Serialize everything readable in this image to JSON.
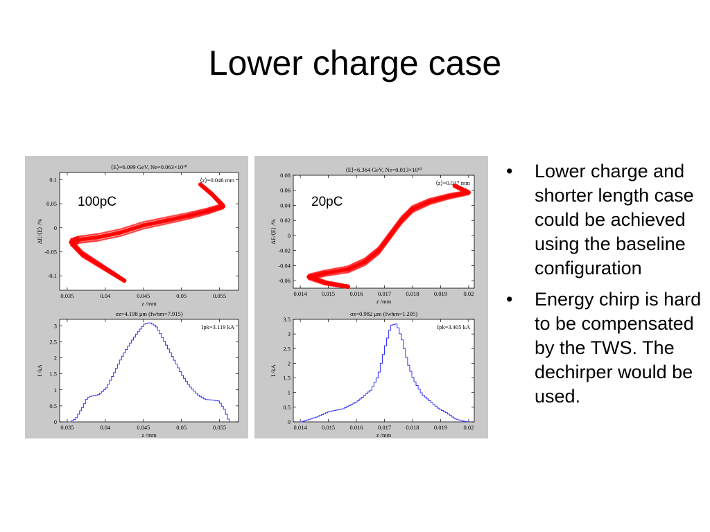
{
  "slide": {
    "title": "Lower charge case",
    "bullets": [
      "Lower charge and shorter length case could be achieved using the baseline configuration",
      "Energy chirp is hard to be compensated by the TWS. The dechirper would be used."
    ],
    "bullet_glyph": "•"
  },
  "panels": [
    {
      "label": "100pC",
      "top_header": "⟨E⟩=6.099 GeV, Ne=0.063×10¹⁰",
      "top_note": "⟨z⟩=0.046 mm",
      "bottom_header": "σz=4.198 μm (fwhm=7.915)",
      "bottom_note": "Ipk=3.119 kA"
    },
    {
      "label": "20pC",
      "top_header": "⟨E⟩=6.364 GeV, Ne=0.013×10¹⁰",
      "top_note": "⟨z⟩=0.017 mm",
      "bottom_header": "σz=0.982 μm (fwhm=1.205)",
      "bottom_note": "Ipk=3.405 kA"
    }
  ],
  "chart_data": [
    {
      "type": "scatter",
      "panel": "100pC",
      "xlabel": "z /mm",
      "ylabel": "ΔE/⟨E⟩ /%",
      "xlim": [
        0.034,
        0.0575
      ],
      "ylim": [
        -0.13,
        0.115
      ],
      "xticks": [
        0.035,
        0.04,
        0.045,
        0.05,
        0.055
      ],
      "xtick_labels": [
        "0.035",
        "0.04",
        "0.045",
        "0.05",
        "0.055"
      ],
      "yticks": [
        -0.1,
        -0.05,
        0,
        0.05,
        0.1
      ],
      "ytick_labels": [
        "-0.1",
        "-0.05",
        "0",
        "0.05",
        "0.1"
      ],
      "color": "#ff0000",
      "band_width": 0.014,
      "x": [
        0.0425,
        0.041,
        0.039,
        0.037,
        0.0355,
        0.0365,
        0.039,
        0.042,
        0.045,
        0.048,
        0.051,
        0.0535,
        0.0555,
        0.054,
        0.0525
      ],
      "y": [
        -0.11,
        -0.095,
        -0.075,
        -0.055,
        -0.03,
        -0.025,
        -0.02,
        -0.01,
        0.005,
        0.015,
        0.025,
        0.035,
        0.045,
        0.07,
        0.09
      ]
    },
    {
      "type": "scatter",
      "panel": "20pC",
      "xlabel": "z /mm",
      "ylabel": "ΔE/⟨E⟩ /%",
      "xlim": [
        0.01375,
        0.0202
      ],
      "ylim": [
        -0.07,
        0.08
      ],
      "xticks": [
        0.014,
        0.015,
        0.016,
        0.017,
        0.018,
        0.019,
        0.02
      ],
      "xtick_labels": [
        "0.014",
        "0.015",
        "0.016",
        "0.017",
        "0.018",
        "0.019",
        "0.02"
      ],
      "yticks": [
        -0.06,
        -0.04,
        -0.02,
        0,
        0.02,
        0.04,
        0.06,
        0.08
      ],
      "ytick_labels": [
        "-0.06",
        "-0.04",
        "-0.02",
        "0",
        "0.02",
        "0.04",
        "0.06",
        "0.08"
      ],
      "color": "#ff0000",
      "band_width": 0.009,
      "x": [
        0.0157,
        0.0149,
        0.0143,
        0.0149,
        0.0157,
        0.0163,
        0.0168,
        0.0172,
        0.0176,
        0.018,
        0.0186,
        0.0193,
        0.02,
        0.0195
      ],
      "y": [
        -0.068,
        -0.063,
        -0.055,
        -0.05,
        -0.045,
        -0.035,
        -0.02,
        0,
        0.02,
        0.035,
        0.045,
        0.052,
        0.057,
        0.066
      ]
    },
    {
      "type": "line",
      "panel": "100pC",
      "step": true,
      "xlabel": "z /mm",
      "ylabel": "I /kA",
      "xlim": [
        0.034,
        0.0575
      ],
      "ylim": [
        0,
        3.2
      ],
      "xticks": [
        0.035,
        0.04,
        0.045,
        0.05,
        0.055
      ],
      "xtick_labels": [
        "0.035",
        "0.04",
        "0.045",
        "0.05",
        "0.055"
      ],
      "yticks": [
        0,
        0.5,
        1,
        1.5,
        2,
        2.5,
        3
      ],
      "ytick_labels": [
        "0",
        "0.5",
        "1",
        "1.5",
        "2",
        "2.5",
        "3"
      ],
      "color": "#3333ff",
      "x": [
        0.0353,
        0.036,
        0.037,
        0.0375,
        0.038,
        0.039,
        0.04,
        0.041,
        0.042,
        0.043,
        0.044,
        0.045,
        0.0457,
        0.0465,
        0.047,
        0.048,
        0.049,
        0.05,
        0.051,
        0.052,
        0.053,
        0.054,
        0.0548,
        0.0555,
        0.056,
        0.0563
      ],
      "y": [
        0.0,
        0.1,
        0.5,
        0.75,
        0.8,
        0.85,
        1.05,
        1.5,
        2.0,
        2.4,
        2.75,
        3.05,
        3.1,
        3.0,
        2.8,
        2.35,
        1.9,
        1.45,
        1.1,
        0.85,
        0.7,
        0.68,
        0.65,
        0.4,
        0.1,
        0.0
      ]
    },
    {
      "type": "line",
      "panel": "20pC",
      "step": true,
      "xlabel": "z /mm",
      "ylabel": "I /kA",
      "xlim": [
        0.01375,
        0.0202
      ],
      "ylim": [
        0,
        3.5
      ],
      "xticks": [
        0.014,
        0.015,
        0.016,
        0.017,
        0.018,
        0.019,
        0.02
      ],
      "xtick_labels": [
        "0.014",
        "0.015",
        "0.016",
        "0.017",
        "0.018",
        "0.019",
        "0.02"
      ],
      "yticks": [
        0,
        0.5,
        1,
        1.5,
        2,
        2.5,
        3,
        3.5
      ],
      "ytick_labels": [
        "0",
        "0.5",
        "1",
        "1.5",
        "2",
        "2.5",
        "3",
        "3.5"
      ],
      "color": "#3333ff",
      "x": [
        0.014,
        0.0145,
        0.015,
        0.0155,
        0.016,
        0.0165,
        0.01675,
        0.017,
        0.0172,
        0.0174,
        0.0176,
        0.0178,
        0.018,
        0.0183,
        0.0186,
        0.0189,
        0.0192,
        0.0195,
        0.0198,
        0.02
      ],
      "y": [
        0.0,
        0.15,
        0.35,
        0.45,
        0.7,
        1.1,
        1.6,
        2.6,
        3.3,
        3.35,
        2.8,
        2.0,
        1.45,
        0.95,
        0.7,
        0.45,
        0.3,
        0.1,
        0.02,
        0.0
      ]
    }
  ]
}
